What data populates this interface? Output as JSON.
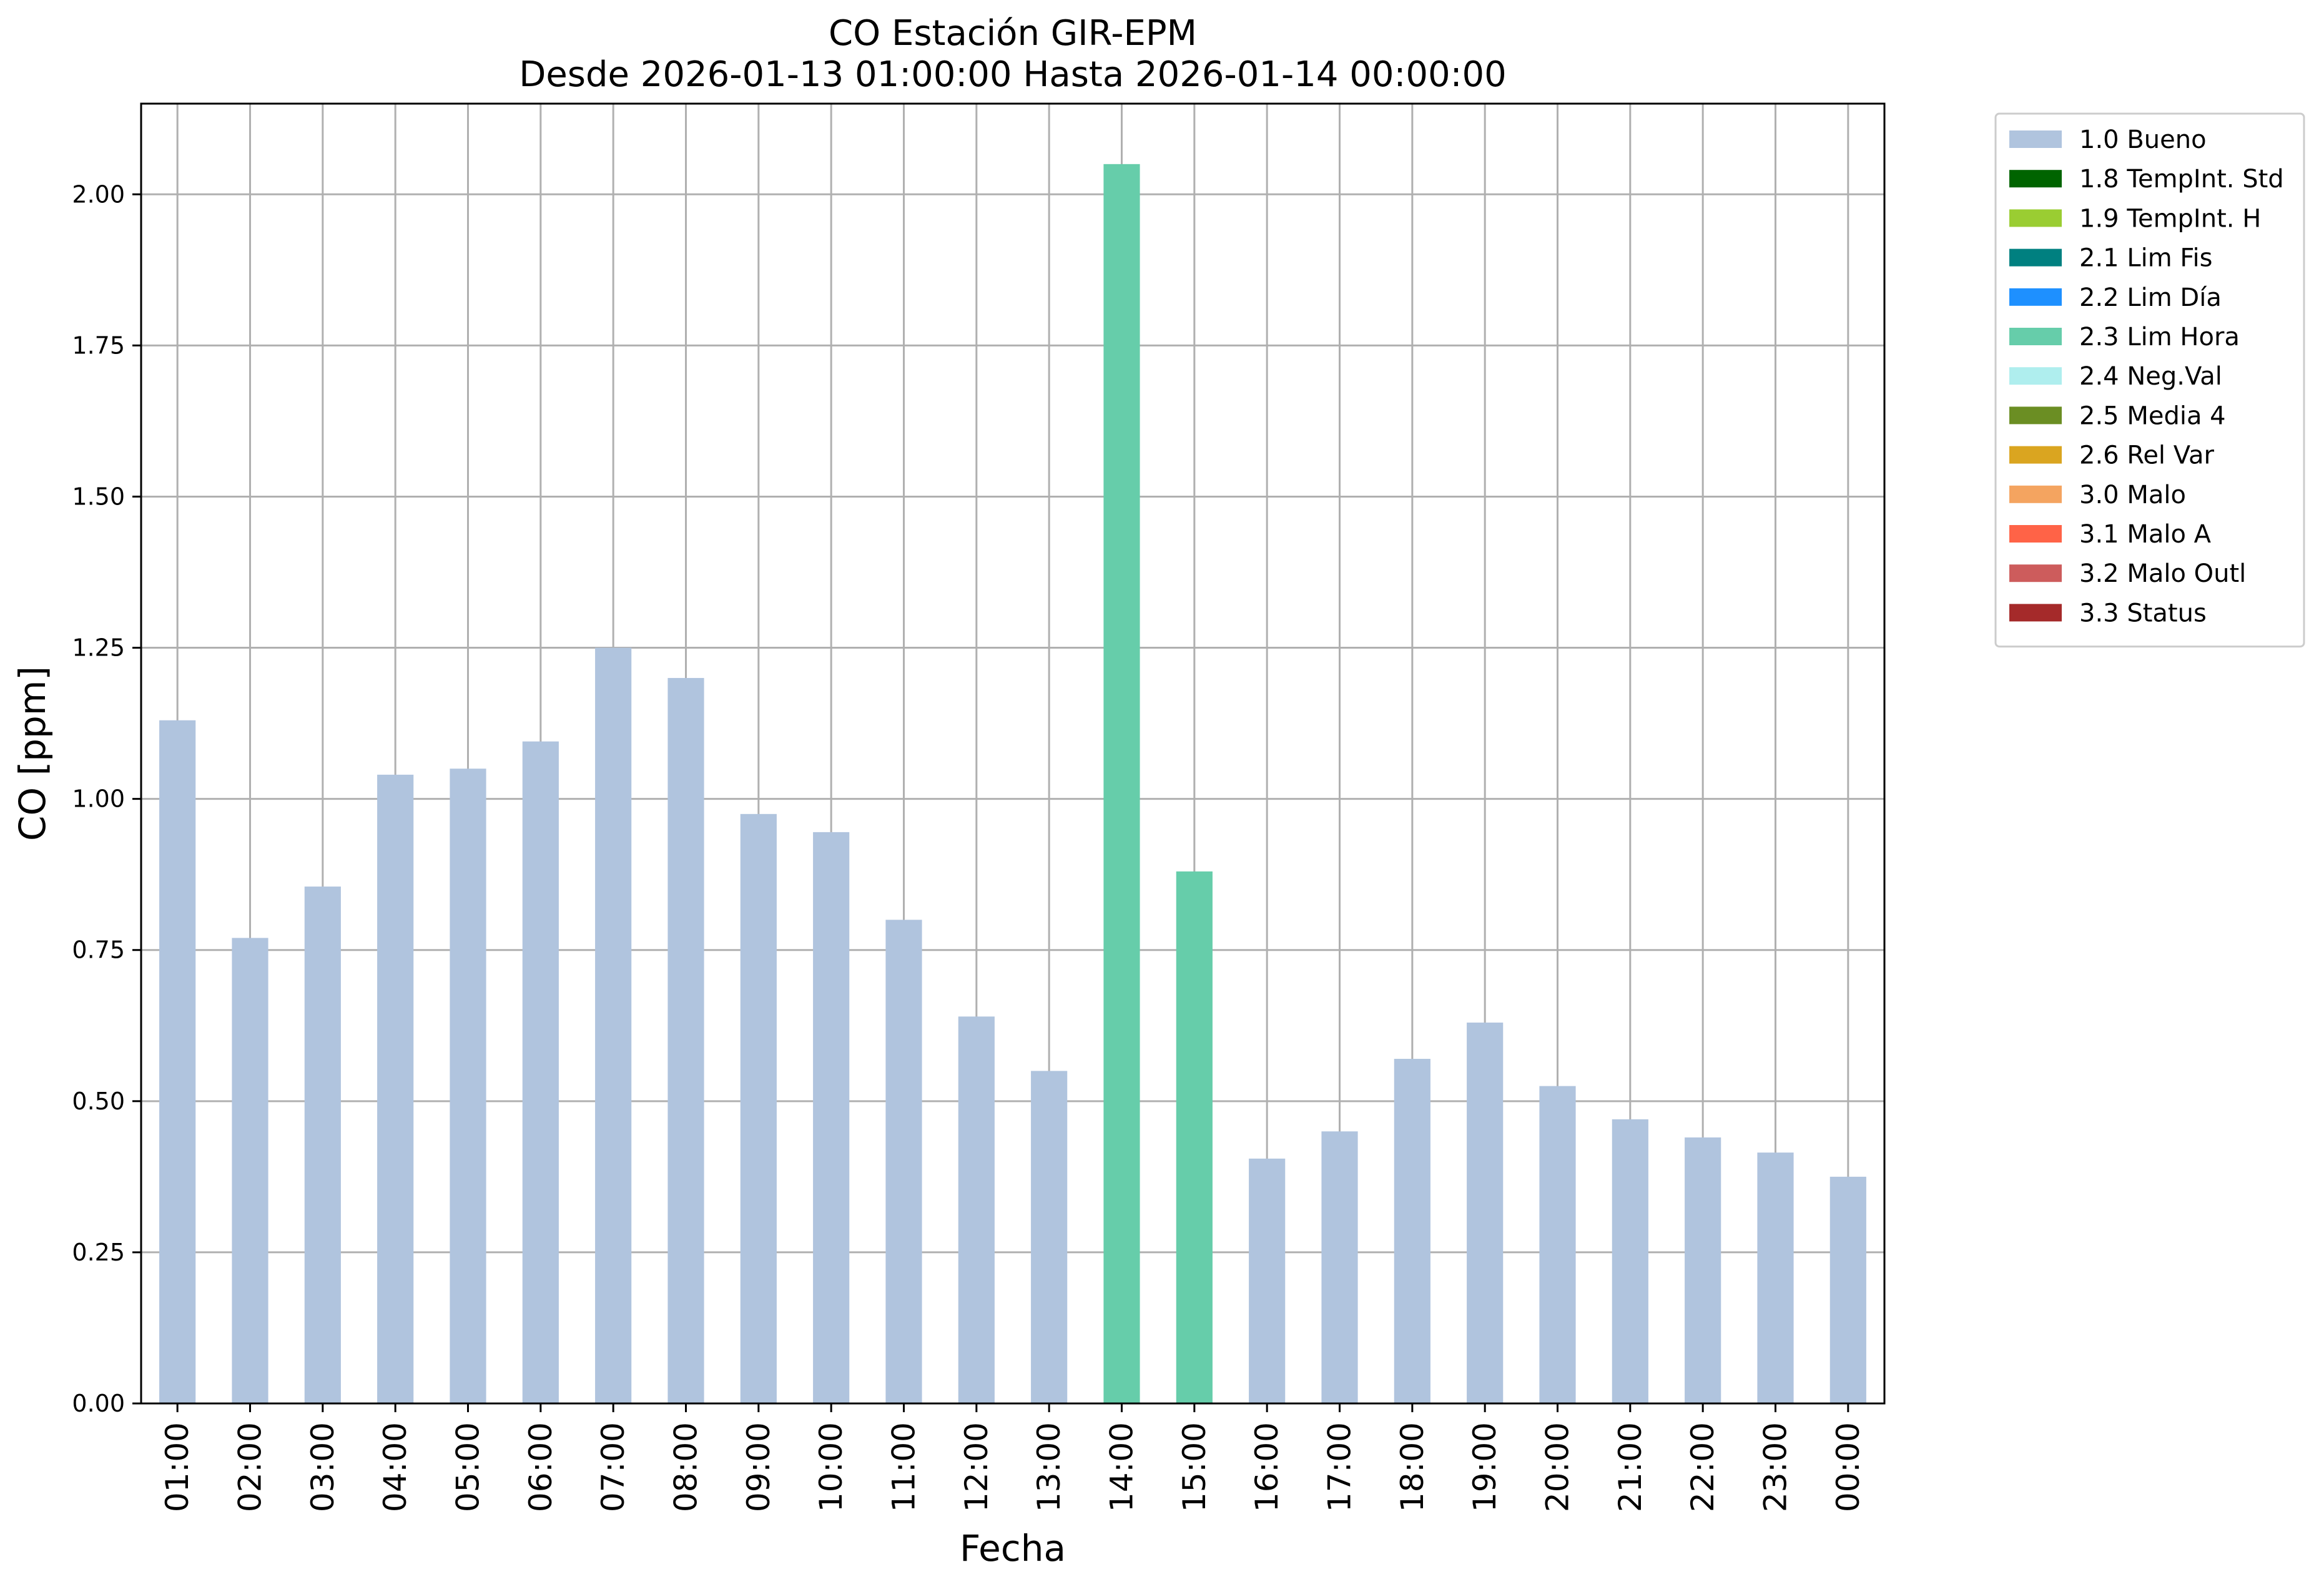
{
  "chart_data": {
    "type": "bar",
    "title": "CO Estación GIR-EPM",
    "subtitle": "Desde 2026-01-13 01:00:00 Hasta 2026-01-14 00:00:00",
    "xlabel": "Fecha",
    "ylabel": "CO [ppm]",
    "ylim": [
      0,
      2.15
    ],
    "yticks": [
      "0.00",
      "0.25",
      "0.50",
      "0.75",
      "1.00",
      "1.25",
      "1.50",
      "1.75",
      "2.00"
    ],
    "grid": true,
    "legend_position": "outside-top-right",
    "categories": [
      "01:00",
      "02:00",
      "03:00",
      "04:00",
      "05:00",
      "06:00",
      "07:00",
      "08:00",
      "09:00",
      "10:00",
      "11:00",
      "12:00",
      "13:00",
      "14:00",
      "15:00",
      "16:00",
      "17:00",
      "18:00",
      "19:00",
      "20:00",
      "21:00",
      "22:00",
      "23:00",
      "00:00"
    ],
    "values": [
      1.13,
      0.77,
      0.855,
      1.04,
      1.05,
      1.095,
      1.25,
      1.2,
      0.975,
      0.945,
      0.8,
      0.64,
      0.55,
      2.05,
      0.88,
      0.405,
      0.45,
      0.57,
      0.63,
      0.525,
      0.47,
      0.44,
      0.415,
      0.375
    ],
    "flags": [
      "1.0 Bueno",
      "1.0 Bueno",
      "1.0 Bueno",
      "1.0 Bueno",
      "1.0 Bueno",
      "1.0 Bueno",
      "1.0 Bueno",
      "1.0 Bueno",
      "1.0 Bueno",
      "1.0 Bueno",
      "1.0 Bueno",
      "1.0 Bueno",
      "1.0 Bueno",
      "2.3 Lim Hora",
      "2.3 Lim Hora",
      "1.0 Bueno",
      "1.0 Bueno",
      "1.0 Bueno",
      "1.0 Bueno",
      "1.0 Bueno",
      "1.0 Bueno",
      "1.0 Bueno",
      "1.0 Bueno",
      "1.0 Bueno"
    ],
    "legend": [
      {
        "name": "1.0 Bueno",
        "color": "#b0c4de"
      },
      {
        "name": "1.8 TempInt. Std",
        "color": "#006400"
      },
      {
        "name": "1.9 TempInt. H",
        "color": "#9acd32"
      },
      {
        "name": "2.1 Lim Fis",
        "color": "#008080"
      },
      {
        "name": "2.2 Lim Día",
        "color": "#1e90ff"
      },
      {
        "name": "2.3 Lim Hora",
        "color": "#66cdaa"
      },
      {
        "name": "2.4 Neg.Val",
        "color": "#afeeee"
      },
      {
        "name": "2.5 Media 4",
        "color": "#6b8e23"
      },
      {
        "name": "2.6 Rel Var",
        "color": "#daa520"
      },
      {
        "name": "3.0 Malo",
        "color": "#f4a460"
      },
      {
        "name": "3.1 Malo A",
        "color": "#ff6347"
      },
      {
        "name": "3.2 Malo Outl",
        "color": "#cd5c5c"
      },
      {
        "name": "3.3 Status",
        "color": "#a52a2a"
      }
    ]
  }
}
